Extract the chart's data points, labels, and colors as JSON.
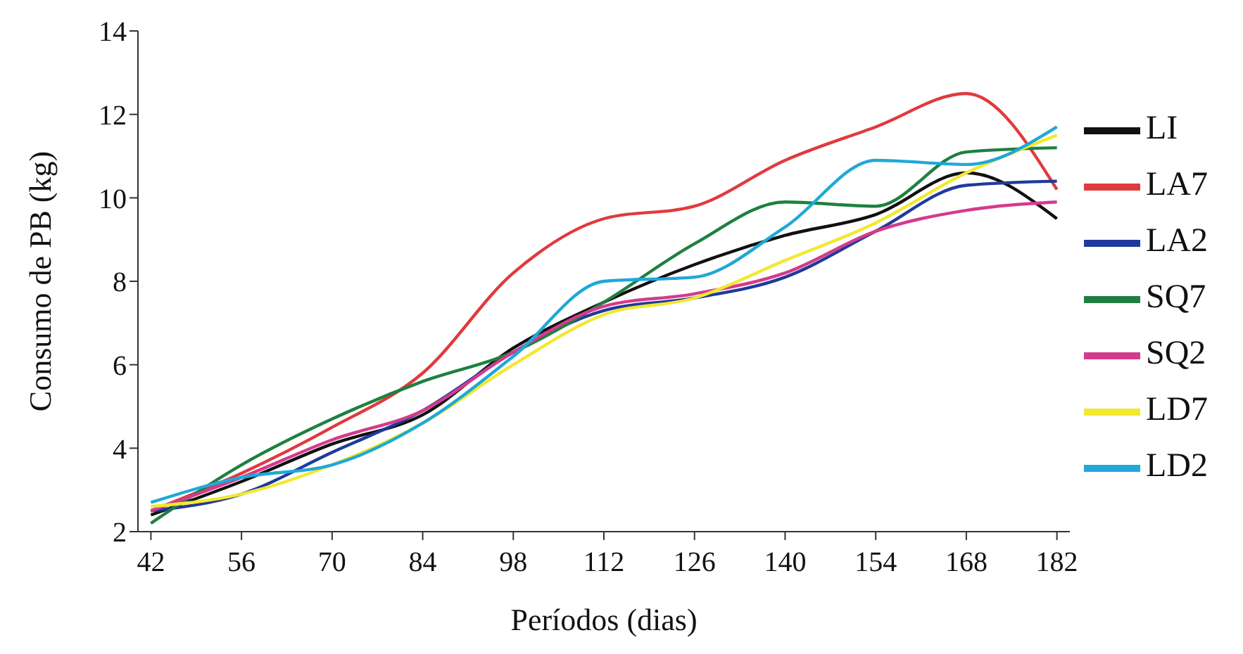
{
  "chart_data": {
    "type": "line",
    "xlabel": "Períodos (dias)",
    "ylabel": "Consumo de PB (kg)",
    "x": [
      42,
      56,
      70,
      84,
      98,
      112,
      126,
      140,
      154,
      168,
      182
    ],
    "xlim": [
      40,
      184
    ],
    "xticks": [
      42,
      56,
      70,
      84,
      98,
      112,
      126,
      140,
      154,
      168,
      182
    ],
    "ylim": [
      2,
      14
    ],
    "yticks": [
      2,
      4,
      6,
      8,
      10,
      12,
      14
    ],
    "grid": false,
    "legend": "right",
    "marker": "none",
    "line_style": "solid",
    "series": [
      {
        "name": "LI",
        "color": "#111111",
        "values": [
          2.4,
          3.2,
          4.1,
          4.8,
          6.4,
          7.5,
          8.4,
          9.1,
          9.6,
          10.6,
          9.5
        ]
      },
      {
        "name": "LA7",
        "color": "#e03a3e",
        "values": [
          2.5,
          3.4,
          4.5,
          5.8,
          8.2,
          9.5,
          9.8,
          10.9,
          11.7,
          12.5,
          10.2
        ]
      },
      {
        "name": "LA2",
        "color": "#1f3a9a",
        "values": [
          2.5,
          2.9,
          3.9,
          4.9,
          6.3,
          7.3,
          7.6,
          8.1,
          9.2,
          10.3,
          10.4
        ]
      },
      {
        "name": "SQ7",
        "color": "#1e8040",
        "values": [
          2.2,
          3.6,
          4.7,
          5.6,
          6.3,
          7.5,
          8.9,
          9.9,
          9.8,
          11.1,
          11.2
        ]
      },
      {
        "name": "SQ2",
        "color": "#d43a8c",
        "values": [
          2.5,
          3.3,
          4.2,
          4.9,
          6.3,
          7.4,
          7.7,
          8.2,
          9.2,
          9.7,
          9.9
        ]
      },
      {
        "name": "LD7",
        "color": "#f2e830",
        "values": [
          2.6,
          2.9,
          3.6,
          4.6,
          6.0,
          7.2,
          7.6,
          8.5,
          9.4,
          10.6,
          11.5
        ]
      },
      {
        "name": "LD2",
        "color": "#1fa8d8",
        "values": [
          2.7,
          3.3,
          3.6,
          4.6,
          6.2,
          8.0,
          8.1,
          9.3,
          10.9,
          10.8,
          11.7
        ]
      }
    ]
  }
}
